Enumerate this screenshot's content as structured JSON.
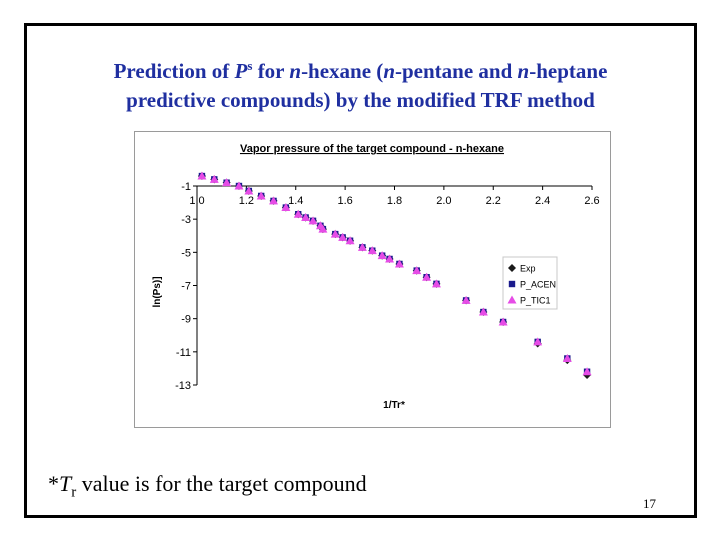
{
  "slide": {
    "title_part1": "Prediction of ",
    "title_var": "P",
    "title_sup": "s",
    "title_part2": " for ",
    "title_n1": "n",
    "title_part3": "-hexane (",
    "title_n2": "n",
    "title_part4": "-pentane and ",
    "title_n3": "n",
    "title_part5": "-heptane",
    "title_line2": "predictive compounds) by the modified TRF method",
    "footnote_star": "*",
    "footnote_var": "T",
    "footnote_sub": "r",
    "footnote_rest": " value is for the target compound",
    "page_number": "17"
  },
  "colors": {
    "title": "#1f2fa0",
    "exp": "#1a1a1a",
    "acen": "#1a1a8c",
    "tic1": "#e64ce6"
  },
  "chart_data": {
    "type": "scatter",
    "title": "Vapor pressure of the target compound - n-hexane",
    "xlabel": "1/Tr*",
    "ylabel": "ln(Ps)]",
    "xlim": [
      1.0,
      2.6
    ],
    "ylim": [
      -13,
      -1
    ],
    "xticks": [
      "1.0",
      "1.2",
      "1.4",
      "1.6",
      "1.8",
      "2.0",
      "2.2",
      "2.4",
      "2.6"
    ],
    "yticks": [
      "-1",
      "-3",
      "-5",
      "-7",
      "-9",
      "-11",
      "-13"
    ],
    "x_axis_position": "top",
    "grid": false,
    "legend_position": "right",
    "x": [
      1.02,
      1.07,
      1.12,
      1.17,
      1.21,
      1.26,
      1.31,
      1.36,
      1.41,
      1.44,
      1.47,
      1.5,
      1.51,
      1.56,
      1.59,
      1.62,
      1.67,
      1.71,
      1.75,
      1.78,
      1.82,
      1.89,
      1.93,
      1.97,
      2.09,
      2.16,
      2.24,
      2.38,
      2.5,
      2.58
    ],
    "series": [
      {
        "name": "Exp",
        "marker": "diamond",
        "values": [
          -0.4,
          -0.6,
          -0.8,
          -1.0,
          -1.3,
          -1.6,
          -1.9,
          -2.3,
          -2.7,
          -2.9,
          -3.1,
          -3.4,
          -3.6,
          -3.9,
          -4.1,
          -4.3,
          -4.7,
          -4.9,
          -5.2,
          -5.4,
          -5.7,
          -6.1,
          -6.5,
          -6.9,
          -7.9,
          -8.6,
          -9.2,
          -10.5,
          -11.5,
          -12.4
        ]
      },
      {
        "name": "P_ACEN",
        "marker": "square",
        "values": [
          -0.4,
          -0.6,
          -0.8,
          -1.0,
          -1.3,
          -1.6,
          -1.9,
          -2.3,
          -2.7,
          -2.9,
          -3.1,
          -3.4,
          -3.6,
          -3.9,
          -4.1,
          -4.3,
          -4.7,
          -4.9,
          -5.2,
          -5.4,
          -5.7,
          -6.1,
          -6.5,
          -6.9,
          -7.9,
          -8.6,
          -9.2,
          -10.4,
          -11.4,
          -12.2
        ]
      },
      {
        "name": "P_TIC1",
        "marker": "triangle",
        "values": [
          -0.4,
          -0.6,
          -0.8,
          -1.0,
          -1.3,
          -1.6,
          -1.9,
          -2.3,
          -2.7,
          -2.9,
          -3.1,
          -3.4,
          -3.6,
          -3.9,
          -4.1,
          -4.3,
          -4.7,
          -4.9,
          -5.2,
          -5.4,
          -5.7,
          -6.1,
          -6.5,
          -6.9,
          -7.9,
          -8.6,
          -9.2,
          -10.4,
          -11.4,
          -12.2
        ]
      }
    ]
  }
}
